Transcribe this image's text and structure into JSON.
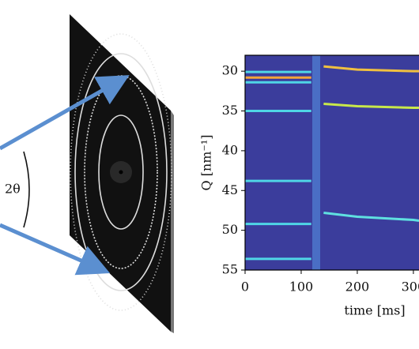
{
  "diagram": {
    "angle_label": "2θ"
  },
  "chart_data": {
    "type": "line",
    "x_label": "time [ms]",
    "y_label": "Q [nm⁻¹]",
    "x": [
      0,
      118,
      140,
      200,
      300,
      310
    ],
    "series": [
      {
        "color": "#4fd6e6",
        "values": [
          30.1,
          30.1,
          null,
          null,
          null,
          null
        ]
      },
      {
        "color": "#f3a43a",
        "values": [
          30.8,
          30.8,
          null,
          null,
          null,
          null
        ]
      },
      {
        "color": "#4fd6e6",
        "values": [
          31.4,
          31.4,
          null,
          null,
          null,
          null
        ]
      },
      {
        "color": "#4fd6e6",
        "values": [
          35,
          35,
          null,
          null,
          null,
          null
        ]
      },
      {
        "color": "#4fd6e6",
        "values": [
          43.8,
          43.8,
          null,
          null,
          null,
          null
        ]
      },
      {
        "color": "#4fd6e6",
        "values": [
          49.2,
          49.2,
          null,
          null,
          null,
          null
        ]
      },
      {
        "color": "#4fd6e6",
        "values": [
          53.6,
          53.6,
          null,
          null,
          null,
          null
        ]
      },
      {
        "color": "#f0c040",
        "values": [
          null,
          null,
          29.4,
          29.8,
          30,
          30
        ]
      },
      {
        "color": "#c8e84a",
        "values": [
          null,
          null,
          34.1,
          34.4,
          34.6,
          34.6
        ]
      },
      {
        "color": "#5fe0e0",
        "values": [
          null,
          null,
          47.8,
          48.3,
          48.7,
          48.8
        ]
      }
    ],
    "xlim": [
      0,
      310
    ],
    "ylim": [
      55,
      28
    ],
    "xticks": [
      0,
      100,
      200,
      300
    ],
    "yticks": [
      30,
      35,
      40,
      45,
      50,
      55
    ],
    "background": "#3b3d9c"
  }
}
